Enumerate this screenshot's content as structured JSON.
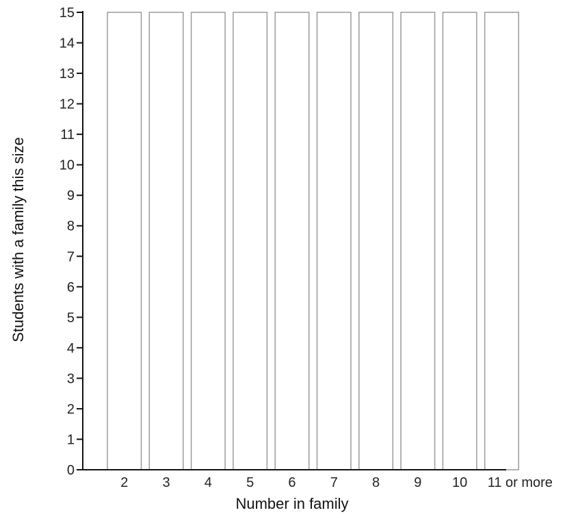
{
  "chart_data": {
    "type": "bar",
    "title": "",
    "xlabel": "Number in family",
    "ylabel": "Students with a family this size",
    "categories": [
      "2",
      "3",
      "4",
      "5",
      "6",
      "7",
      "8",
      "9",
      "10",
      "11 or more"
    ],
    "values": [
      15,
      15,
      15,
      15,
      15,
      15,
      15,
      15,
      15,
      15
    ],
    "ylim": [
      0,
      15
    ],
    "yticks": [
      0,
      1,
      2,
      3,
      4,
      5,
      6,
      7,
      8,
      9,
      10,
      11,
      12,
      13,
      14,
      15
    ],
    "grid": false
  }
}
